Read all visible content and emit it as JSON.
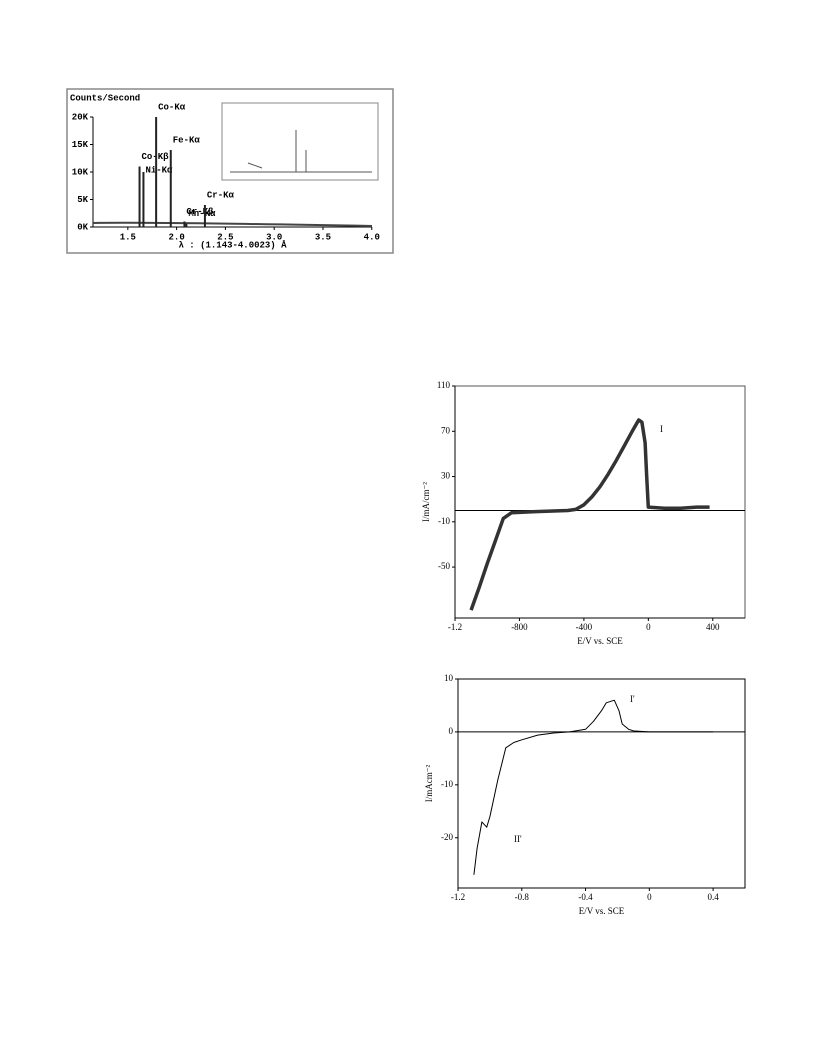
{
  "chart_data": [
    {
      "type": "spectrum",
      "y_label": "Counts/Second",
      "x_label": "λ : (1.143-4.0023) Å",
      "x": [
        1.62,
        1.66,
        1.79,
        1.94,
        2.08,
        2.1,
        2.29
      ],
      "values": [
        11000,
        10000,
        20000,
        14000,
        1000,
        600,
        4000
      ],
      "peak_labels": [
        "Co-Kβ",
        "Ni-Kα",
        "Co-Kα",
        "Fe-Kα",
        "Cr-Kβ",
        "Mn-Kα",
        "Cr-Kα"
      ],
      "color": "#222222",
      "xlim": [
        1.143,
        4.0023
      ],
      "xticks": [
        1.5,
        {
          "value": 2,
          "label": "2.0"
        },
        2.5,
        {
          "value": 3,
          "label": "3.0"
        },
        3.5,
        {
          "value": 4,
          "label": "4.0"
        }
      ],
      "ylim": [
        0,
        20000
      ],
      "yticks": [
        {
          "value": 0,
          "label": "0K"
        },
        {
          "value": 5000,
          "label": "5K"
        },
        {
          "value": 10000,
          "label": "10K"
        },
        {
          "value": 15000,
          "label": "15K"
        },
        {
          "value": 20000,
          "label": "20K"
        }
      ]
    },
    {
      "type": "line",
      "x_label": "E/V vs. SCE",
      "y_label": "I/mA/cm⁻²",
      "annotations": [
        "I"
      ],
      "x": [
        -1100,
        -1050,
        -1000,
        -950,
        -900,
        -850,
        -700,
        -500,
        -450,
        -400,
        -350,
        -300,
        -250,
        -200,
        -150,
        -100,
        -60,
        -40,
        -20,
        -10,
        0,
        100,
        200,
        300,
        380
      ],
      "values": [
        -88,
        -68,
        -47,
        -27,
        -7,
        -2,
        -1,
        0,
        1,
        5,
        12,
        21,
        32,
        44,
        57,
        70,
        80,
        78,
        60,
        30,
        3,
        2,
        2,
        3,
        3
      ],
      "color": "#333333",
      "xlim": [
        -1200,
        600
      ],
      "xticks": [
        {
          "value": -1200,
          "label": "-1.2"
        },
        -800,
        -400,
        0,
        400
      ],
      "ylim": [
        -95,
        110
      ],
      "yticks": [
        110,
        70,
        30,
        -10,
        -50
      ],
      "zero_line": true
    },
    {
      "type": "line",
      "x_label": "E/V vs. SCE",
      "y_label": "I/mAcm⁻²",
      "annotations": [
        "I'",
        "II'"
      ],
      "x": [
        -1.1,
        -1.08,
        -1.05,
        -1.02,
        -1.0,
        -0.95,
        -0.9,
        -0.85,
        -0.8,
        -0.7,
        -0.6,
        -0.5,
        -0.4,
        -0.35,
        -0.3,
        -0.27,
        -0.22,
        -0.19,
        -0.17,
        -0.13,
        -0.1,
        0,
        0.2,
        0.4
      ],
      "values": [
        -27,
        -22,
        -17,
        -18,
        -16,
        -9,
        -3,
        -2,
        -1.5,
        -0.6,
        -0.2,
        0,
        0.5,
        2,
        4,
        5.5,
        6,
        4,
        1.5,
        0.5,
        0.2,
        0,
        0,
        0
      ],
      "color": "#000000",
      "xlim": [
        -1.2,
        0.6
      ],
      "xticks": [
        -1.2,
        -0.8,
        -0.4,
        0,
        0.4
      ],
      "ylim": [
        -29.5,
        10
      ],
      "yticks": [
        10,
        0,
        -10,
        -20
      ],
      "zero_line": true
    }
  ]
}
